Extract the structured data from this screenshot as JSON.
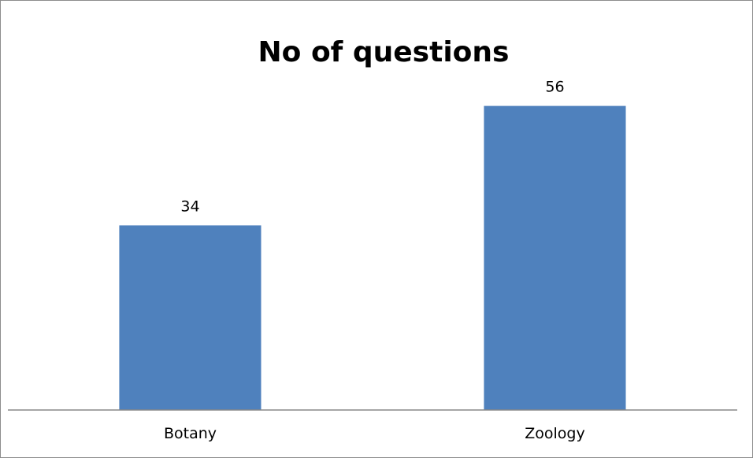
{
  "chart_data": {
    "type": "bar",
    "title": "No of questions",
    "categories": [
      "Botany",
      "Zoology"
    ],
    "values": [
      34,
      56
    ],
    "ylim": [
      0,
      61.6
    ],
    "grid": false,
    "legend": "none",
    "bar_color": "#4f81bd",
    "axis_color": "#888888"
  }
}
